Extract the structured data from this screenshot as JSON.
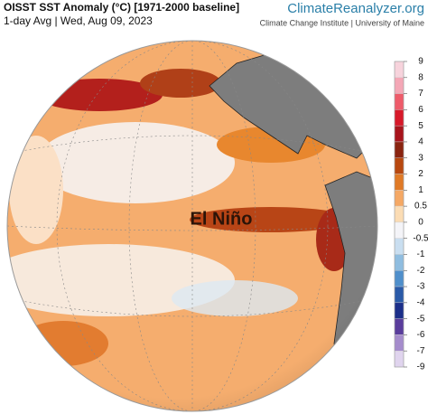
{
  "header": {
    "title": "OISST SST Anomaly (°C) [1971-2000 baseline]",
    "subtitle": "1-day Avg | Wed, Aug 09, 2023",
    "brand": "ClimateReanalyzer.org",
    "brand_subtitle": "Climate Change Institute | University of Maine"
  },
  "map": {
    "annotation": "El Niño"
  },
  "colorbar": {
    "ticks": [
      9,
      8,
      7,
      6,
      5,
      4,
      3,
      2,
      1,
      0.5,
      0,
      -0.5,
      -1,
      -2,
      -3,
      -4,
      -5,
      -6,
      -7,
      -9
    ],
    "colors": [
      "#f7d3dc",
      "#f4a7b6",
      "#ee5b6a",
      "#d7192a",
      "#a8141c",
      "#8a2410",
      "#b8480f",
      "#e07a26",
      "#f5a864",
      "#fbdcb4",
      "#f4f4f8",
      "#c9def0",
      "#8fbde0",
      "#4f8fcb",
      "#2a5aa8",
      "#1c2f8a",
      "#5a3d9c",
      "#a58ccc",
      "#e0d4ee"
    ]
  }
}
